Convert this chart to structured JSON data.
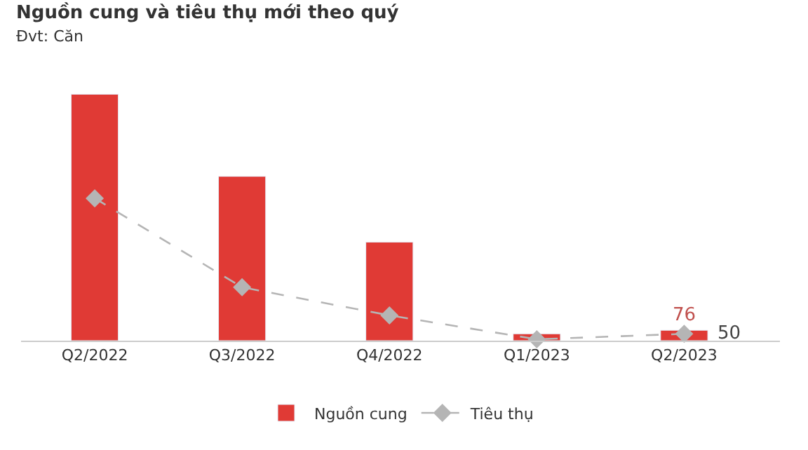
{
  "chart_data": {
    "type": "bar",
    "title": "Nguồn cung và tiêu thụ mới theo quý",
    "subtitle": "Đvt: Căn",
    "categories": [
      "Q2/2022",
      "Q3/2022",
      "Q4/2022",
      "Q1/2023",
      "Q2/2023"
    ],
    "series": [
      {
        "name": "Nguồn cung",
        "color": "#e03a35",
        "values": [
          1800,
          1200,
          720,
          50,
          76
        ],
        "value_labels": [
          null,
          null,
          null,
          null,
          "76"
        ]
      },
      {
        "name": "Tiêu thụ",
        "type": "line",
        "color": "#b5b5b5",
        "values": [
          1040,
          390,
          185,
          10,
          50
        ],
        "value_labels": [
          null,
          null,
          null,
          null,
          "50"
        ],
        "marker": "diamond",
        "line_style": "dashed"
      }
    ],
    "legend": "bottom"
  }
}
